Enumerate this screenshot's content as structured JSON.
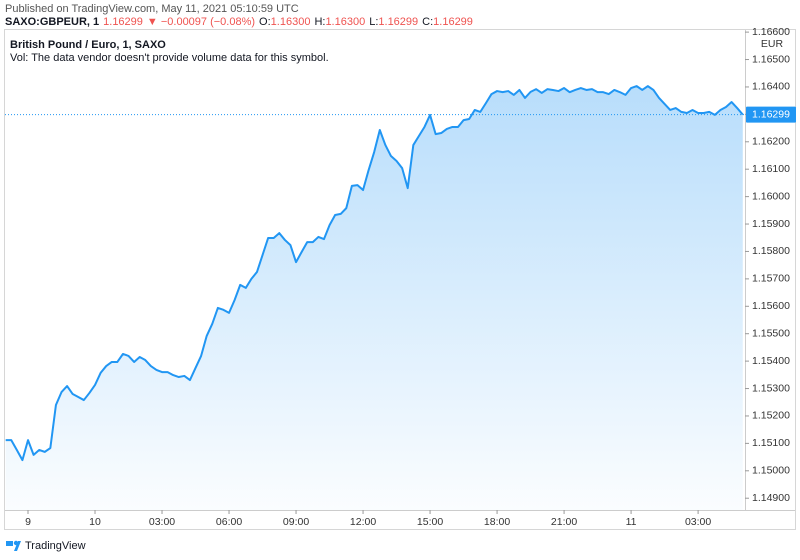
{
  "header": {
    "published": "Published on TradingView.com, May 11, 2021 05:10:59 UTC",
    "symbol": "SAXO:GBPEUR, 1",
    "price": "1.16299",
    "change": "▼ −0.00097 (−0.08%)",
    "ohlc": [
      {
        "key": "O:",
        "value": "1.16300"
      },
      {
        "key": "H:",
        "value": "1.16300"
      },
      {
        "key": "L:",
        "value": "1.16299"
      },
      {
        "key": "C:",
        "value": "1.16299"
      }
    ]
  },
  "footer": {
    "brand": "TradingView"
  },
  "chart_data": {
    "type": "area",
    "title": "British Pound / Euro, 1, SAXO",
    "subtitle": "Vol: The data vendor doesn't provide volume data for this symbol.",
    "currency": "EUR",
    "color": "#2196f3",
    "grid": false,
    "last_price": {
      "value": 1.16299,
      "label": "1.16299"
    },
    "xlim": [
      -4.03,
      29.1
    ],
    "ylim": [
      1.14857,
      1.16615
    ],
    "xticks": [
      {
        "value": -3,
        "label": "9"
      },
      {
        "value": 0,
        "label": "10"
      },
      {
        "value": 3,
        "label": "03:00"
      },
      {
        "value": 6,
        "label": "06:00"
      },
      {
        "value": 9,
        "label": "09:00"
      },
      {
        "value": 12,
        "label": "12:00"
      },
      {
        "value": 15,
        "label": "15:00"
      },
      {
        "value": 18,
        "label": "18:00"
      },
      {
        "value": 21,
        "label": "21:00"
      },
      {
        "value": 24,
        "label": "11"
      },
      {
        "value": 27,
        "label": "03:00"
      }
    ],
    "yticks": [
      {
        "value": 1.149,
        "label": "1.14900"
      },
      {
        "value": 1.15,
        "label": "1.15000"
      },
      {
        "value": 1.151,
        "label": "1.15100"
      },
      {
        "value": 1.152,
        "label": "1.15200"
      },
      {
        "value": 1.153,
        "label": "1.15300"
      },
      {
        "value": 1.154,
        "label": "1.15400"
      },
      {
        "value": 1.155,
        "label": "1.15500"
      },
      {
        "value": 1.156,
        "label": "1.15600"
      },
      {
        "value": 1.157,
        "label": "1.15700"
      },
      {
        "value": 1.158,
        "label": "1.15800"
      },
      {
        "value": 1.159,
        "label": "1.15900"
      },
      {
        "value": 1.16,
        "label": "1.16000"
      },
      {
        "value": 1.161,
        "label": "1.16100"
      },
      {
        "value": 1.162,
        "label": "1.16200"
      },
      {
        "value": 1.163,
        "label": "1.16300"
      },
      {
        "value": 1.164,
        "label": "1.16400"
      },
      {
        "value": 1.165,
        "label": "1.16500"
      },
      {
        "value": 1.166,
        "label": "1.16600"
      }
    ],
    "x": [
      -4,
      -3.75,
      -3.5,
      -3.25,
      -3,
      -2.75,
      -2.5,
      -2.25,
      -2,
      -1.75,
      -1.5,
      -1.25,
      -1,
      -0.75,
      -0.5,
      -0.25,
      0,
      0.25,
      0.5,
      0.75,
      1,
      1.25,
      1.5,
      1.75,
      2,
      2.25,
      2.5,
      2.75,
      3,
      3.25,
      3.5,
      3.75,
      4,
      4.25,
      4.5,
      4.75,
      5,
      5.25,
      5.5,
      5.75,
      6,
      6.25,
      6.5,
      6.75,
      7,
      7.25,
      7.5,
      7.75,
      8,
      8.25,
      8.5,
      8.75,
      9,
      9.25,
      9.5,
      9.75,
      10,
      10.25,
      10.5,
      10.75,
      11,
      11.25,
      11.5,
      11.75,
      12,
      12.25,
      12.5,
      12.75,
      13,
      13.25,
      13.5,
      13.75,
      14,
      14.25,
      14.5,
      14.75,
      15,
      15.25,
      15.5,
      15.75,
      16,
      16.25,
      16.5,
      16.75,
      17,
      17.25,
      17.5,
      17.75,
      18,
      18.25,
      18.5,
      18.75,
      19,
      19.25,
      19.5,
      19.75,
      20,
      20.25,
      20.5,
      20.75,
      21,
      21.25,
      21.5,
      21.75,
      22,
      22.25,
      22.5,
      22.75,
      23,
      23.25,
      23.5,
      23.75,
      24,
      24.25,
      24.5,
      24.75,
      25,
      25.25,
      25.5,
      25.75,
      26,
      26.25,
      26.5,
      26.75,
      27,
      27.25,
      27.5,
      27.75,
      28,
      28.25,
      28.5,
      28.75,
      29
    ],
    "values": [
      1.15112,
      1.15112,
      1.15076,
      1.15039,
      1.15112,
      1.15058,
      1.15076,
      1.15069,
      1.15083,
      1.1524,
      1.15287,
      1.15309,
      1.1528,
      1.15269,
      1.15258,
      1.15284,
      1.15313,
      1.15357,
      1.15382,
      1.15397,
      1.15397,
      1.15426,
      1.15419,
      1.15397,
      1.15415,
      1.15404,
      1.15382,
      1.15368,
      1.1536,
      1.1536,
      1.15349,
      1.15342,
      1.15346,
      1.15331,
      1.15375,
      1.15419,
      1.15492,
      1.15536,
      1.15594,
      1.15587,
      1.15576,
      1.15623,
      1.15678,
      1.15667,
      1.157,
      1.15725,
      1.15787,
      1.15849,
      1.15849,
      1.15867,
      1.15842,
      1.15823,
      1.15761,
      1.15798,
      1.15834,
      1.15834,
      1.15853,
      1.15845,
      1.15896,
      1.15933,
      1.15937,
      1.15958,
      1.16039,
      1.16042,
      1.16024,
      1.16097,
      1.16163,
      1.16243,
      1.16188,
      1.16148,
      1.1613,
      1.16104,
      1.16031,
      1.16188,
      1.16221,
      1.16254,
      1.16298,
      1.16228,
      1.16232,
      1.16247,
      1.16254,
      1.16254,
      1.16279,
      1.16283,
      1.16316,
      1.16309,
      1.16341,
      1.16374,
      1.16385,
      1.16381,
      1.16385,
      1.16371,
      1.16389,
      1.1636,
      1.16382,
      1.16392,
      1.16378,
      1.16392,
      1.16389,
      1.16385,
      1.16396,
      1.16381,
      1.16389,
      1.16396,
      1.16389,
      1.16392,
      1.16381,
      1.16381,
      1.16374,
      1.16389,
      1.16381,
      1.16371,
      1.16396,
      1.16403,
      1.16389,
      1.16403,
      1.16389,
      1.1636,
      1.16338,
      1.16316,
      1.16323,
      1.16309,
      1.16305,
      1.16316,
      1.16305,
      1.16305,
      1.16309,
      1.16298,
      1.16316,
      1.16327,
      1.16345,
      1.16323,
      1.16299
    ]
  }
}
